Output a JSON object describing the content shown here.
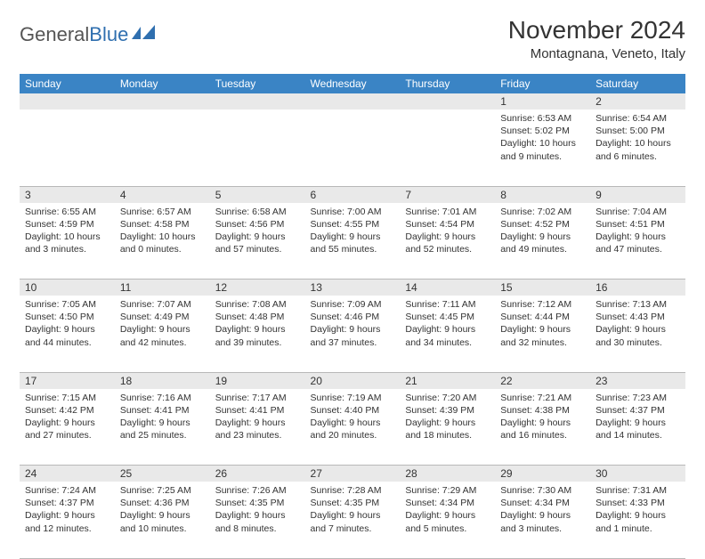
{
  "logo": {
    "text1": "General",
    "text2": "Blue"
  },
  "title": "November 2024",
  "location": "Montagnana, Veneto, Italy",
  "colors": {
    "header_bg": "#3a84c5",
    "header_text": "#ffffff",
    "daynum_bg": "#e9e9e9",
    "border": "#b8b8b8",
    "logo_blue": "#2f6faf",
    "text": "#333333",
    "page_bg": "#ffffff"
  },
  "weekdays": [
    "Sunday",
    "Monday",
    "Tuesday",
    "Wednesday",
    "Thursday",
    "Friday",
    "Saturday"
  ],
  "weeks": [
    [
      null,
      null,
      null,
      null,
      null,
      {
        "n": "1",
        "sr": "6:53 AM",
        "ss": "5:02 PM",
        "dl": "10 hours and 9 minutes."
      },
      {
        "n": "2",
        "sr": "6:54 AM",
        "ss": "5:00 PM",
        "dl": "10 hours and 6 minutes."
      }
    ],
    [
      {
        "n": "3",
        "sr": "6:55 AM",
        "ss": "4:59 PM",
        "dl": "10 hours and 3 minutes."
      },
      {
        "n": "4",
        "sr": "6:57 AM",
        "ss": "4:58 PM",
        "dl": "10 hours and 0 minutes."
      },
      {
        "n": "5",
        "sr": "6:58 AM",
        "ss": "4:56 PM",
        "dl": "9 hours and 57 minutes."
      },
      {
        "n": "6",
        "sr": "7:00 AM",
        "ss": "4:55 PM",
        "dl": "9 hours and 55 minutes."
      },
      {
        "n": "7",
        "sr": "7:01 AM",
        "ss": "4:54 PM",
        "dl": "9 hours and 52 minutes."
      },
      {
        "n": "8",
        "sr": "7:02 AM",
        "ss": "4:52 PM",
        "dl": "9 hours and 49 minutes."
      },
      {
        "n": "9",
        "sr": "7:04 AM",
        "ss": "4:51 PM",
        "dl": "9 hours and 47 minutes."
      }
    ],
    [
      {
        "n": "10",
        "sr": "7:05 AM",
        "ss": "4:50 PM",
        "dl": "9 hours and 44 minutes."
      },
      {
        "n": "11",
        "sr": "7:07 AM",
        "ss": "4:49 PM",
        "dl": "9 hours and 42 minutes."
      },
      {
        "n": "12",
        "sr": "7:08 AM",
        "ss": "4:48 PM",
        "dl": "9 hours and 39 minutes."
      },
      {
        "n": "13",
        "sr": "7:09 AM",
        "ss": "4:46 PM",
        "dl": "9 hours and 37 minutes."
      },
      {
        "n": "14",
        "sr": "7:11 AM",
        "ss": "4:45 PM",
        "dl": "9 hours and 34 minutes."
      },
      {
        "n": "15",
        "sr": "7:12 AM",
        "ss": "4:44 PM",
        "dl": "9 hours and 32 minutes."
      },
      {
        "n": "16",
        "sr": "7:13 AM",
        "ss": "4:43 PM",
        "dl": "9 hours and 30 minutes."
      }
    ],
    [
      {
        "n": "17",
        "sr": "7:15 AM",
        "ss": "4:42 PM",
        "dl": "9 hours and 27 minutes."
      },
      {
        "n": "18",
        "sr": "7:16 AM",
        "ss": "4:41 PM",
        "dl": "9 hours and 25 minutes."
      },
      {
        "n": "19",
        "sr": "7:17 AM",
        "ss": "4:41 PM",
        "dl": "9 hours and 23 minutes."
      },
      {
        "n": "20",
        "sr": "7:19 AM",
        "ss": "4:40 PM",
        "dl": "9 hours and 20 minutes."
      },
      {
        "n": "21",
        "sr": "7:20 AM",
        "ss": "4:39 PM",
        "dl": "9 hours and 18 minutes."
      },
      {
        "n": "22",
        "sr": "7:21 AM",
        "ss": "4:38 PM",
        "dl": "9 hours and 16 minutes."
      },
      {
        "n": "23",
        "sr": "7:23 AM",
        "ss": "4:37 PM",
        "dl": "9 hours and 14 minutes."
      }
    ],
    [
      {
        "n": "24",
        "sr": "7:24 AM",
        "ss": "4:37 PM",
        "dl": "9 hours and 12 minutes."
      },
      {
        "n": "25",
        "sr": "7:25 AM",
        "ss": "4:36 PM",
        "dl": "9 hours and 10 minutes."
      },
      {
        "n": "26",
        "sr": "7:26 AM",
        "ss": "4:35 PM",
        "dl": "9 hours and 8 minutes."
      },
      {
        "n": "27",
        "sr": "7:28 AM",
        "ss": "4:35 PM",
        "dl": "9 hours and 7 minutes."
      },
      {
        "n": "28",
        "sr": "7:29 AM",
        "ss": "4:34 PM",
        "dl": "9 hours and 5 minutes."
      },
      {
        "n": "29",
        "sr": "7:30 AM",
        "ss": "4:34 PM",
        "dl": "9 hours and 3 minutes."
      },
      {
        "n": "30",
        "sr": "7:31 AM",
        "ss": "4:33 PM",
        "dl": "9 hours and 1 minute."
      }
    ]
  ],
  "labels": {
    "sunrise": "Sunrise:",
    "sunset": "Sunset:",
    "daylight": "Daylight:"
  }
}
